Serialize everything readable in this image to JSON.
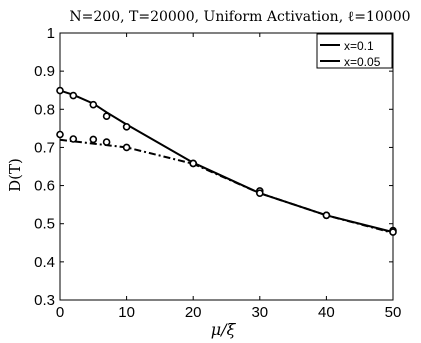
{
  "chart_data": {
    "type": "line",
    "title": "N=200, T=20000, Uniform Activation, ℓ=10000",
    "xlabel": "μ/ξ",
    "ylabel": "D(T)",
    "xlim": [
      0,
      50
    ],
    "ylim": [
      0.3,
      1.0
    ],
    "x_ticks": [
      "0",
      "10",
      "20",
      "30",
      "40",
      "50"
    ],
    "y_ticks": [
      "0.3",
      "0.4",
      "0.5",
      "0.6",
      "0.7",
      "0.8",
      "0.9",
      "1"
    ],
    "grid": false,
    "legend_position": "top-right",
    "series": [
      {
        "name": "x=0.1",
        "line_style": "solid",
        "marker": "circle",
        "x": [
          0,
          2,
          5,
          7,
          10,
          20,
          30,
          40,
          50
        ],
        "y": [
          0.849,
          0.836,
          0.812,
          0.782,
          0.754,
          0.658,
          0.586,
          0.522,
          0.482
        ],
        "line": {
          "x": [
            0,
            2,
            5,
            7,
            10,
            20,
            30,
            40,
            50
          ],
          "y": [
            0.849,
            0.838,
            0.815,
            0.792,
            0.76,
            0.66,
            0.58,
            0.522,
            0.478
          ]
        }
      },
      {
        "name": "x=0.05",
        "line_style": "dash-dot",
        "marker": "circle",
        "x": [
          0,
          2,
          5,
          7,
          10,
          20,
          30,
          40,
          50
        ],
        "y": [
          0.734,
          0.722,
          0.721,
          0.714,
          0.7,
          0.658,
          0.58,
          0.522,
          0.478
        ],
        "line": {
          "x": [
            0,
            10,
            20,
            30,
            40,
            50
          ],
          "y": [
            0.72,
            0.7,
            0.657,
            0.58,
            0.522,
            0.476
          ]
        }
      }
    ]
  }
}
